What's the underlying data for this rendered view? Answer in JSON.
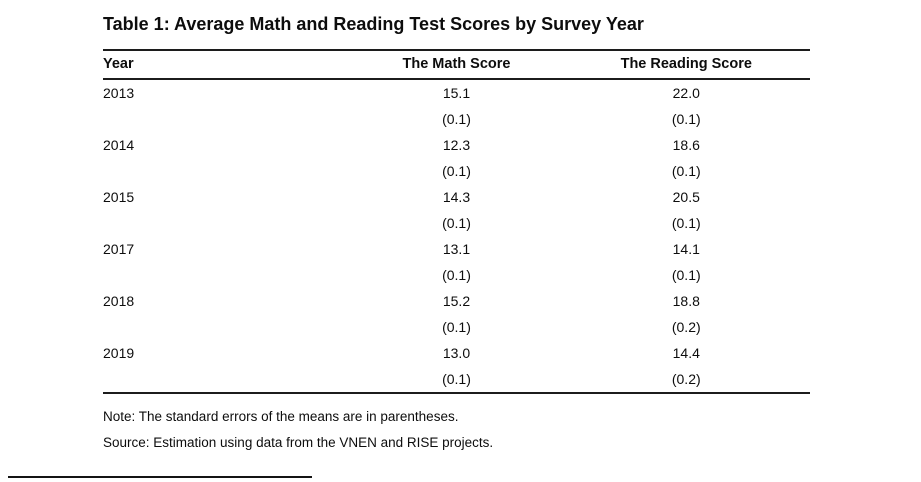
{
  "title": "Table 1: Average Math and Reading Test Scores by Survey Year",
  "table": {
    "columns": [
      "Year",
      "The Math Score",
      "The Reading Score"
    ],
    "rows": [
      {
        "year": "2013",
        "math": "15.1",
        "math_se": "(0.1)",
        "reading": "22.0",
        "reading_se": "(0.1)"
      },
      {
        "year": "2014",
        "math": "12.3",
        "math_se": "(0.1)",
        "reading": "18.6",
        "reading_se": "(0.1)"
      },
      {
        "year": "2015",
        "math": "14.3",
        "math_se": "(0.1)",
        "reading": "20.5",
        "reading_se": "(0.1)"
      },
      {
        "year": "2017",
        "math": "13.1",
        "math_se": "(0.1)",
        "reading": "14.1",
        "reading_se": "(0.1)"
      },
      {
        "year": "2018",
        "math": "15.2",
        "math_se": "(0.1)",
        "reading": "18.8",
        "reading_se": "(0.2)"
      },
      {
        "year": "2019",
        "math": "13.0",
        "math_se": "(0.1)",
        "reading": "14.4",
        "reading_se": "(0.2)"
      }
    ]
  },
  "notes": {
    "note": "Note: The standard errors of the means are in parentheses.",
    "source": "Source: Estimation using data from the VNEN and RISE projects."
  },
  "colors": {
    "text": "#0d0d0d",
    "rule": "#1c1c1c",
    "background": "#ffffff"
  }
}
